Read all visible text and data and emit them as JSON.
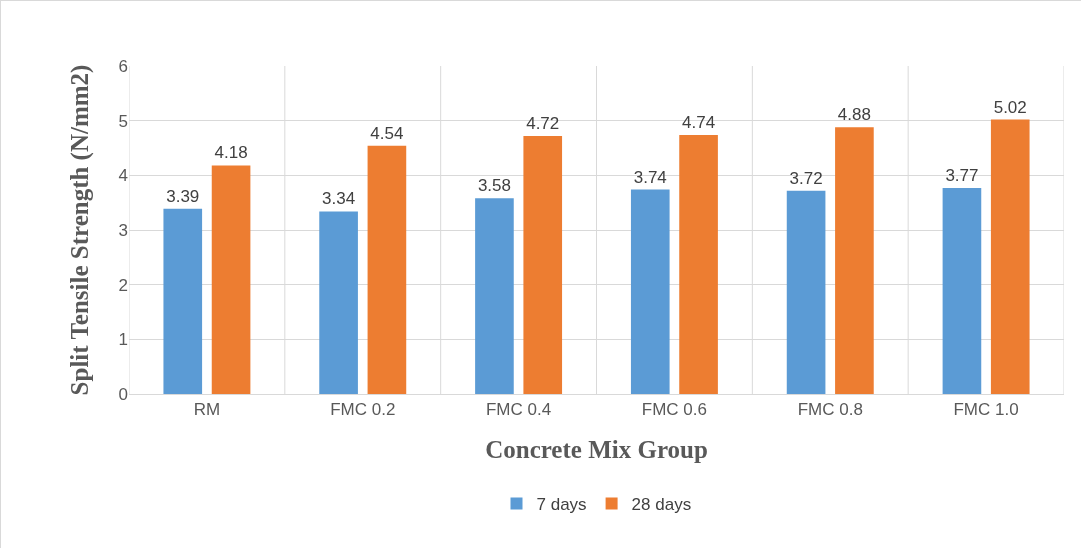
{
  "chart_data": {
    "type": "bar",
    "xlabel": "Concrete Mix Group",
    "ylabel": "Split Tensile Strength (N/mm2)",
    "categories": [
      "RM",
      "FMC 0.2",
      "FMC 0.4",
      "FMC 0.6",
      "FMC 0.8",
      "FMC 1.0"
    ],
    "series": [
      {
        "name": "7 days",
        "color": "#5b9bd5",
        "values": [
          3.39,
          3.34,
          3.58,
          3.74,
          3.72,
          3.77
        ]
      },
      {
        "name": "28 days",
        "color": "#ed7d31",
        "values": [
          4.18,
          4.54,
          4.72,
          4.74,
          4.88,
          5.02
        ]
      }
    ],
    "ylim": [
      0,
      6
    ],
    "yticks": [
      0,
      1,
      2,
      3,
      4,
      5,
      6
    ],
    "grid": true,
    "legend": "bottom",
    "data_labels": true
  }
}
